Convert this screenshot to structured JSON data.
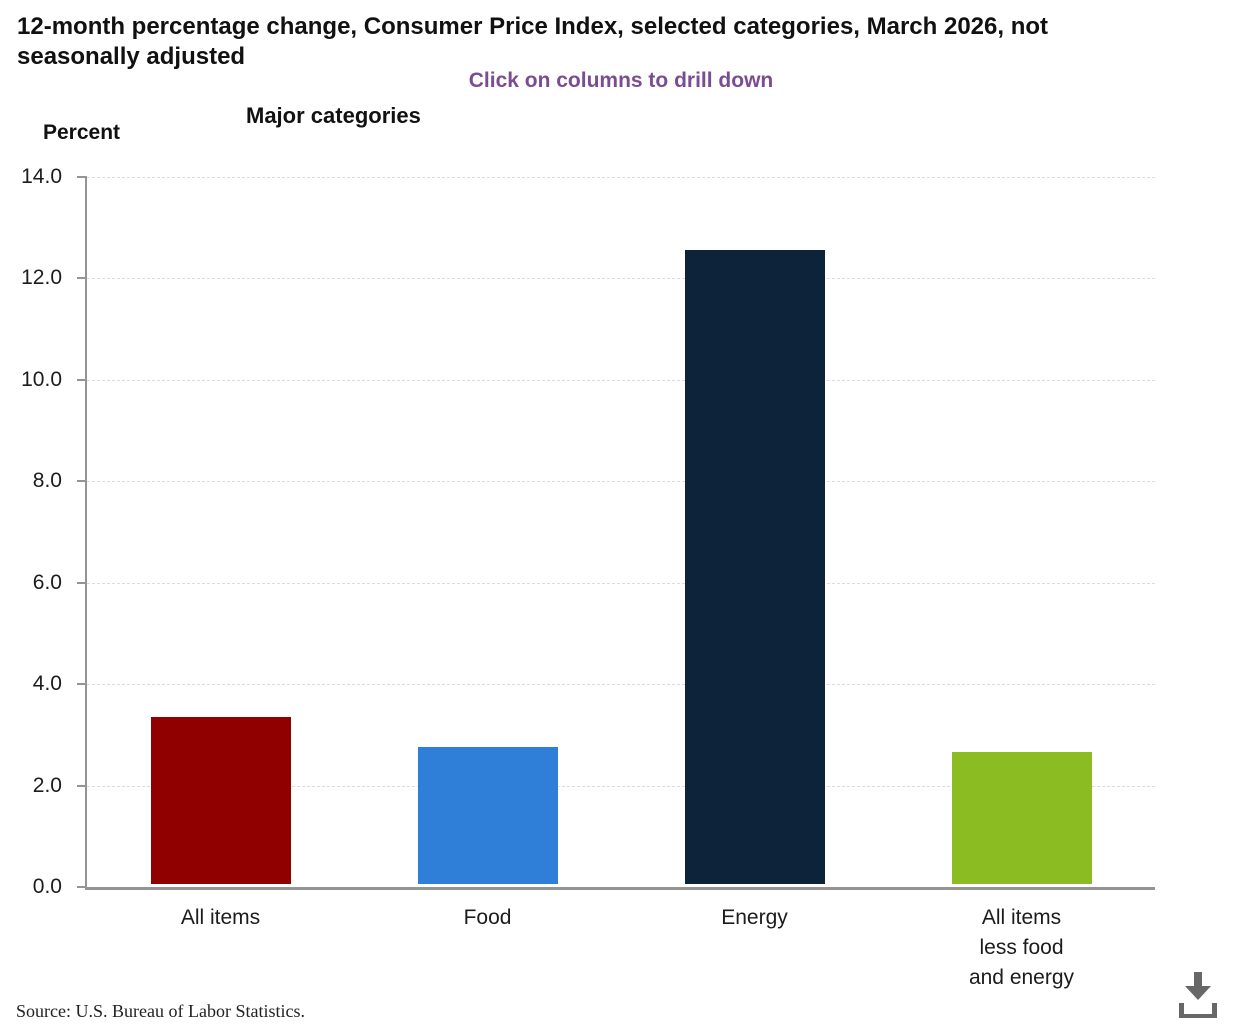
{
  "header": {
    "title": "12-month percentage change, Consumer Price Index, selected categories, March 2026, not seasonally adjusted",
    "subtitle": "Click on columns to drill down"
  },
  "labels": {
    "y_axis_unit": "Percent",
    "x_axis_group": "Major categories"
  },
  "chart_data": {
    "type": "bar",
    "title": "12-month percentage change, Consumer Price Index, selected categories, March 2026, not seasonally adjusted",
    "subtitle": "Click on columns to drill down",
    "categories": [
      "All items",
      "Food",
      "Energy",
      "All items\nless food\nand energy"
    ],
    "values": [
      3.3,
      2.7,
      12.5,
      2.6
    ],
    "bar_colors": [
      "#910000",
      "#2f7ed8",
      "#0d233a",
      "#8bbc21"
    ],
    "xlabel": "Major categories",
    "ylabel": "Percent",
    "ylim": [
      0,
      14
    ],
    "yticks": [
      0,
      2,
      4,
      6,
      8,
      10,
      12,
      14
    ],
    "ytick_format": "one-decimal",
    "grid": "horizontal-dashed",
    "legend": "none"
  },
  "colors": {
    "subtitle_text": "#7a4d92",
    "axis_line": "#949494",
    "gridline": "#dcdcdc",
    "download_icon": "#676767"
  },
  "footer": {
    "source": "Source: U.S. Bureau of Labor Statistics."
  },
  "icons": {
    "download": "download-icon"
  }
}
